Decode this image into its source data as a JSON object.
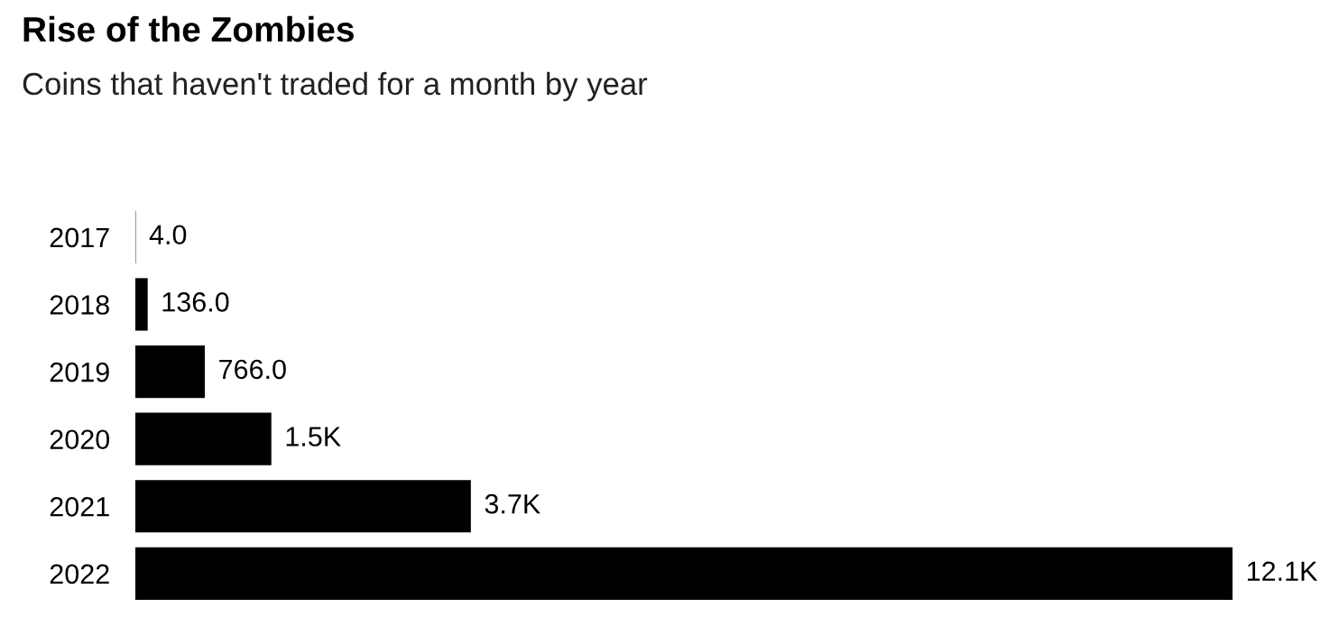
{
  "chart_data": {
    "type": "bar",
    "orientation": "horizontal",
    "title": "Rise of the Zombies",
    "subtitle": "Coins that haven't traded for a month by year",
    "categories": [
      "2017",
      "2018",
      "2019",
      "2020",
      "2021",
      "2022"
    ],
    "values": [
      4.0,
      136.0,
      766.0,
      1500,
      3700,
      12100
    ],
    "value_labels": [
      "4.0",
      "136.0",
      "766.0",
      "1.5K",
      "3.7K",
      "12.1K"
    ],
    "color": "#000000",
    "grid": false,
    "legend": false
  }
}
